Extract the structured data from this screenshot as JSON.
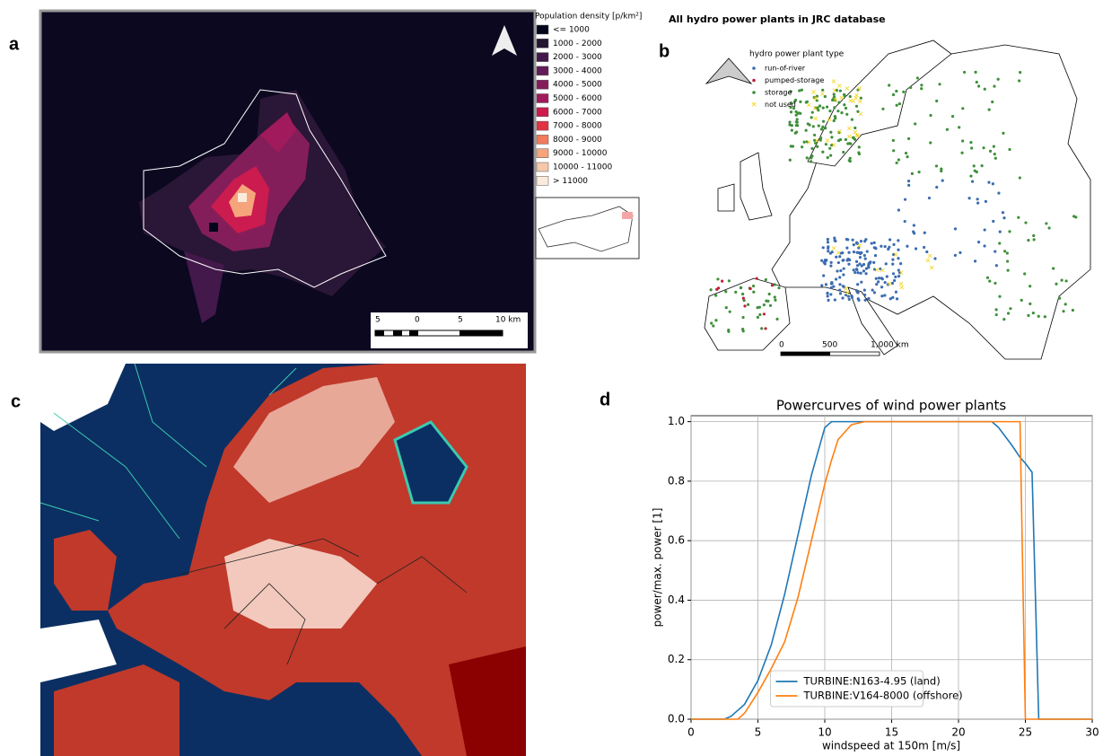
{
  "panel_labels": [
    "a",
    "b",
    "c",
    "d"
  ],
  "map_a": {
    "legend_title": "Population density [p/km²]",
    "legend": [
      {
        "label": "<= 1000",
        "color": "#03051a"
      },
      {
        "label": "1000 - 2000",
        "color": "#231733"
      },
      {
        "label": "2000 - 3000",
        "color": "#43184b"
      },
      {
        "label": "3000 - 4000",
        "color": "#631c58"
      },
      {
        "label": "4000 - 5000",
        "color": "#841e5a"
      },
      {
        "label": "5000 - 6000",
        "color": "#a11a5b"
      },
      {
        "label": "6000 - 7000",
        "color": "#cb1b4f"
      },
      {
        "label": "7000 - 8000",
        "color": "#e13342"
      },
      {
        "label": "8000 - 9000",
        "color": "#f17b5a"
      },
      {
        "label": "9000 - 10000",
        "color": "#f6a47b"
      },
      {
        "label": "10000 - 11000",
        "color": "#f6c8ab"
      },
      {
        "label": "> 11000",
        "color": "#faebdd"
      }
    ],
    "scale_labels": [
      "5",
      "0",
      "5",
      "10 km"
    ]
  },
  "map_b": {
    "title": "All hydro power plants in JRC database",
    "legend_title": "hydro power plant type",
    "legend": [
      {
        "label": "run-of-river",
        "color": "#3b6cb0"
      },
      {
        "label": "pumped-storage",
        "color": "#c0203a"
      },
      {
        "label": "storage",
        "color": "#3f8f3a"
      },
      {
        "label": "not used",
        "color": "#f5d000"
      }
    ],
    "scale_labels": [
      "0",
      "500",
      "1,000 km"
    ]
  },
  "chart_data": {
    "type": "line",
    "title": "Powercurves of wind power plants",
    "x_label": "windspeed at 150m [m/s]",
    "y_label": "power/max. power [1]",
    "x": [
      0,
      2.5,
      3,
      3.5,
      4,
      5,
      6,
      7,
      8,
      9,
      10,
      10.5,
      11,
      12,
      13,
      22.5,
      23,
      24,
      24.6,
      25,
      25.5,
      26,
      30
    ],
    "series": [
      {
        "name": "TURBINE:N163-4.95 (land)",
        "color": "#1f77b4",
        "values": [
          0,
          0,
          0.01,
          0.03,
          0.05,
          0.13,
          0.25,
          0.42,
          0.62,
          0.82,
          0.98,
          1.0,
          1.0,
          1.0,
          1.0,
          1.0,
          0.98,
          0.92,
          0.88,
          0.86,
          0.83,
          0,
          0
        ]
      },
      {
        "name": "TURBINE:V164-8000 (offshore)",
        "color": "#ff7f0e",
        "values": [
          0,
          0,
          0,
          0,
          0.02,
          0.09,
          0.17,
          0.26,
          0.41,
          0.6,
          0.79,
          0.87,
          0.94,
          0.99,
          1.0,
          1.0,
          1.0,
          1.0,
          1.0,
          0,
          0,
          0,
          0
        ]
      }
    ],
    "xlim": [
      0,
      30
    ],
    "ylim": [
      0,
      1.02
    ],
    "xticks": [
      0,
      5,
      10,
      15,
      20,
      25,
      30
    ],
    "yticks": [
      {
        "value": 0,
        "label": "0.0"
      },
      {
        "value": 0.2,
        "label": "0.2"
      },
      {
        "value": 0.4,
        "label": "0.4"
      },
      {
        "value": 0.6,
        "label": "0.6"
      },
      {
        "value": 0.8,
        "label": "0.8"
      },
      {
        "value": 1.0,
        "label": "1.0"
      }
    ],
    "grid": true,
    "legend_position": "lower center"
  }
}
